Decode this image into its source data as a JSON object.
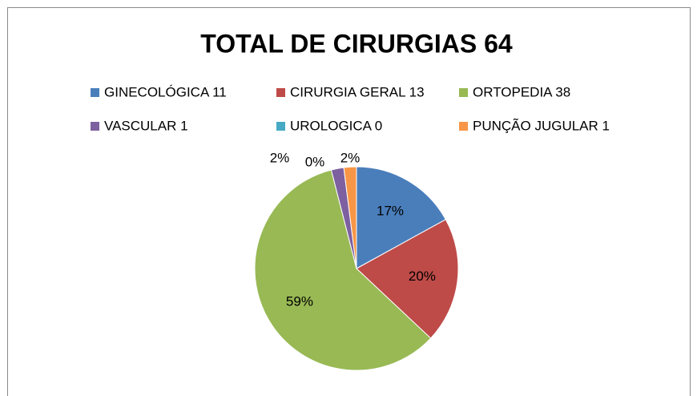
{
  "chart_data": {
    "type": "pie",
    "title": "TOTAL DE CIRURGIAS 64",
    "series": [
      {
        "name": "GINECOLÓGICA 11",
        "color": "#4a7ebb",
        "values": [
          17
        ],
        "value_labels": [
          "17%"
        ]
      },
      {
        "name": "CIRURGIA GERAL 13",
        "color": "#be4b48",
        "values": [
          20
        ],
        "value_labels": [
          "20%"
        ]
      },
      {
        "name": "ORTOPEDIA 38",
        "color": "#98b954",
        "values": [
          59
        ],
        "value_labels": [
          "59%"
        ]
      },
      {
        "name": "VASCULAR 1",
        "color": "#7d60a0",
        "values": [
          2
        ],
        "value_labels": [
          "2%"
        ]
      },
      {
        "name": "UROLOGICA 0",
        "color": "#46aac5",
        "values": [
          0
        ],
        "value_labels": [
          "0%"
        ]
      },
      {
        "name": "PUNÇÃO JUGULAR 1",
        "color": "#f79646",
        "values": [
          2
        ],
        "value_labels": [
          "2%"
        ]
      }
    ],
    "legend": "top"
  }
}
